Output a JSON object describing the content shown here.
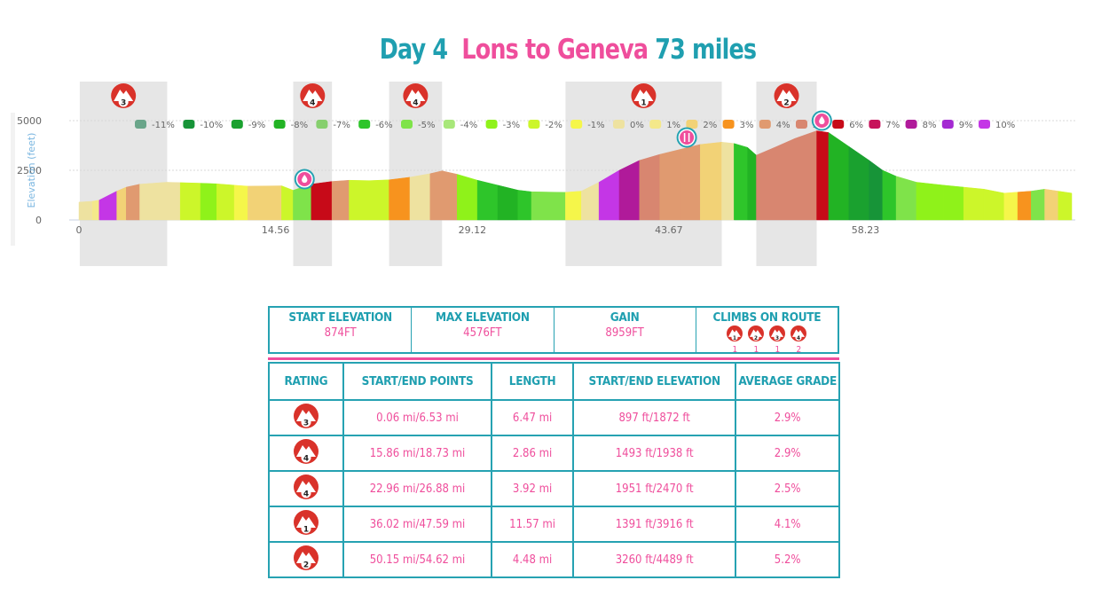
{
  "title": {
    "day": "Day 4",
    "route": "Lons to Geneva",
    "distance": "73 miles"
  },
  "colors": {
    "teal": "#1f9fb0",
    "pink": "#ef4e9c",
    "badge_red": "#d9322a"
  },
  "chart_data": {
    "type": "area",
    "ylabel": "Elevation (feet)",
    "yticks": [
      "0",
      "2500",
      "5000"
    ],
    "xticks": [
      "0",
      "14.56",
      "29.12",
      "43.67",
      "58.23"
    ],
    "xlim": [
      0,
      73.5
    ],
    "ylim": [
      0,
      5000
    ],
    "legend": [
      {
        "label": "-11%",
        "color": "#6aa58a"
      },
      {
        "label": "-10%",
        "color": "#179438"
      },
      {
        "label": "-9%",
        "color": "#1aa12f"
      },
      {
        "label": "-8%",
        "color": "#22b324"
      },
      {
        "label": "-7%",
        "color": "#86cf6e"
      },
      {
        "label": "-6%",
        "color": "#2ec52a"
      },
      {
        "label": "-5%",
        "color": "#7fe34a"
      },
      {
        "label": "-4%",
        "color": "#a8e77a"
      },
      {
        "label": "-3%",
        "color": "#8ff21a"
      },
      {
        "label": "-2%",
        "color": "#ccf62a"
      },
      {
        "label": "-1%",
        "color": "#f5f64a"
      },
      {
        "label": "0%",
        "color": "#eee2a0"
      },
      {
        "label": "1%",
        "color": "#f4e88a"
      },
      {
        "label": "2%",
        "color": "#f2d276"
      },
      {
        "label": "3%",
        "color": "#f7931e"
      },
      {
        "label": "4%",
        "color": "#e09a70"
      },
      {
        "label": "5%",
        "color": "#d88670"
      },
      {
        "label": "6%",
        "color": "#c70a18"
      },
      {
        "label": "7%",
        "color": "#c7125a"
      },
      {
        "label": "8%",
        "color": "#b01a9a"
      },
      {
        "label": "9%",
        "color": "#a42ad2"
      },
      {
        "label": "10%",
        "color": "#c436e6"
      }
    ],
    "climb_zones": [
      {
        "rating": "3",
        "start": 0.06,
        "end": 6.53
      },
      {
        "rating": "4",
        "start": 15.86,
        "end": 18.73
      },
      {
        "rating": "4",
        "start": 22.96,
        "end": 26.88
      },
      {
        "rating": "1",
        "start": 36.02,
        "end": 47.59
      },
      {
        "rating": "2",
        "start": 50.15,
        "end": 54.62
      }
    ],
    "markers": [
      {
        "type": "water",
        "x": 16.7
      },
      {
        "type": "food",
        "x": 45.0
      },
      {
        "type": "water",
        "x": 55.0
      }
    ],
    "segments": [
      {
        "x": 0,
        "y": 897,
        "c": "#eee2a0"
      },
      {
        "x": 1.0,
        "y": 940,
        "c": "#f4e88a"
      },
      {
        "x": 1.5,
        "y": 1000,
        "c": "#c436e6"
      },
      {
        "x": 2.8,
        "y": 1450,
        "c": "#f2d276"
      },
      {
        "x": 3.5,
        "y": 1650,
        "c": "#e09a70"
      },
      {
        "x": 4.5,
        "y": 1800,
        "c": "#eee2a0"
      },
      {
        "x": 6.5,
        "y": 1900,
        "c": "#eee2a0"
      },
      {
        "x": 7.5,
        "y": 1880,
        "c": "#ccf62a"
      },
      {
        "x": 9.0,
        "y": 1850,
        "c": "#8ff21a"
      },
      {
        "x": 10.2,
        "y": 1820,
        "c": "#ccf62a"
      },
      {
        "x": 11.5,
        "y": 1750,
        "c": "#f5f64a"
      },
      {
        "x": 12.5,
        "y": 1700,
        "c": "#f2d276"
      },
      {
        "x": 15.0,
        "y": 1720,
        "c": "#ccf62a"
      },
      {
        "x": 15.86,
        "y": 1493,
        "c": "#7fe34a"
      },
      {
        "x": 17.2,
        "y": 1800,
        "c": "#c70a18"
      },
      {
        "x": 18.73,
        "y": 1938,
        "c": "#e09a70"
      },
      {
        "x": 20.0,
        "y": 2000,
        "c": "#ccf62a"
      },
      {
        "x": 21.5,
        "y": 1980,
        "c": "#ccf62a"
      },
      {
        "x": 22.96,
        "y": 2020,
        "c": "#f7931e"
      },
      {
        "x": 24.5,
        "y": 2150,
        "c": "#eee2a0"
      },
      {
        "x": 26.0,
        "y": 2330,
        "c": "#e09a70"
      },
      {
        "x": 26.88,
        "y": 2470,
        "c": "#e09a70"
      },
      {
        "x": 28.0,
        "y": 2300,
        "c": "#8ff21a"
      },
      {
        "x": 29.5,
        "y": 2000,
        "c": "#2ec52a"
      },
      {
        "x": 31.0,
        "y": 1750,
        "c": "#22b324"
      },
      {
        "x": 32.5,
        "y": 1500,
        "c": "#2ec52a"
      },
      {
        "x": 33.5,
        "y": 1420,
        "c": "#7fe34a"
      },
      {
        "x": 36.02,
        "y": 1391,
        "c": "#f5f64a"
      },
      {
        "x": 37.2,
        "y": 1450,
        "c": "#eee2a0"
      },
      {
        "x": 38.5,
        "y": 1900,
        "c": "#c436e6"
      },
      {
        "x": 40.0,
        "y": 2500,
        "c": "#b01a9a"
      },
      {
        "x": 41.5,
        "y": 3000,
        "c": "#d88670"
      },
      {
        "x": 43.0,
        "y": 3300,
        "c": "#e09a70"
      },
      {
        "x": 44.5,
        "y": 3550,
        "c": "#e09a70"
      },
      {
        "x": 46.0,
        "y": 3800,
        "c": "#f2d276"
      },
      {
        "x": 47.59,
        "y": 3916,
        "c": "#eee2a0"
      },
      {
        "x": 48.5,
        "y": 3850,
        "c": "#2ec52a"
      },
      {
        "x": 49.5,
        "y": 3650,
        "c": "#22b324"
      },
      {
        "x": 50.15,
        "y": 3260,
        "c": "#d88670"
      },
      {
        "x": 51.5,
        "y": 3650,
        "c": "#d88670"
      },
      {
        "x": 53.0,
        "y": 4100,
        "c": "#d88670"
      },
      {
        "x": 54.62,
        "y": 4489,
        "c": "#c70a18"
      },
      {
        "x": 55.5,
        "y": 4400,
        "c": "#22b324"
      },
      {
        "x": 57.0,
        "y": 3700,
        "c": "#1aa12f"
      },
      {
        "x": 58.5,
        "y": 3000,
        "c": "#179438"
      },
      {
        "x": 59.5,
        "y": 2500,
        "c": "#2ec52a"
      },
      {
        "x": 60.5,
        "y": 2200,
        "c": "#7fe34a"
      },
      {
        "x": 62.0,
        "y": 1900,
        "c": "#8ff21a"
      },
      {
        "x": 64.0,
        "y": 1750,
        "c": "#8ff21a"
      },
      {
        "x": 65.5,
        "y": 1650,
        "c": "#ccf62a"
      },
      {
        "x": 67.0,
        "y": 1550,
        "c": "#ccf62a"
      },
      {
        "x": 68.5,
        "y": 1350,
        "c": "#f5f64a"
      },
      {
        "x": 69.5,
        "y": 1400,
        "c": "#f7931e"
      },
      {
        "x": 70.5,
        "y": 1450,
        "c": "#7fe34a"
      },
      {
        "x": 71.5,
        "y": 1550,
        "c": "#f2d276"
      },
      {
        "x": 72.5,
        "y": 1450,
        "c": "#ccf62a"
      },
      {
        "x": 73.5,
        "y": 1350,
        "c": "#ccf62a"
      }
    ]
  },
  "summary": {
    "start_elevation_label": "START ELEVATION",
    "start_elevation_value": "874FT",
    "max_elevation_label": "MAX ELEVATION",
    "max_elevation_value": "4576FT",
    "gain_label": "GAIN",
    "gain_value": "8959FT",
    "climbs_label": "CLIMBS ON ROUTE",
    "climb_counts": [
      {
        "rating": "1",
        "count": "1"
      },
      {
        "rating": "2",
        "count": "1"
      },
      {
        "rating": "3",
        "count": "1"
      },
      {
        "rating": "4",
        "count": "2"
      }
    ]
  },
  "table": {
    "headers": [
      "RATING",
      "START/END POINTS",
      "LENGTH",
      "START/END ELEVATION",
      "AVERAGE GRADE"
    ],
    "rows": [
      {
        "rating": "3",
        "points": "0.06 mi/6.53 mi",
        "length": "6.47 mi",
        "elevation": "897 ft/1872 ft",
        "grade": "2.9%"
      },
      {
        "rating": "4",
        "points": "15.86 mi/18.73 mi",
        "length": "2.86 mi",
        "elevation": "1493 ft/1938 ft",
        "grade": "2.9%"
      },
      {
        "rating": "4",
        "points": "22.96 mi/26.88 mi",
        "length": "3.92 mi",
        "elevation": "1951 ft/2470 ft",
        "grade": "2.5%"
      },
      {
        "rating": "1",
        "points": "36.02 mi/47.59 mi",
        "length": "11.57 mi",
        "elevation": "1391 ft/3916 ft",
        "grade": "4.1%"
      },
      {
        "rating": "2",
        "points": "50.15 mi/54.62 mi",
        "length": "4.48 mi",
        "elevation": "3260 ft/4489 ft",
        "grade": "5.2%"
      }
    ]
  }
}
